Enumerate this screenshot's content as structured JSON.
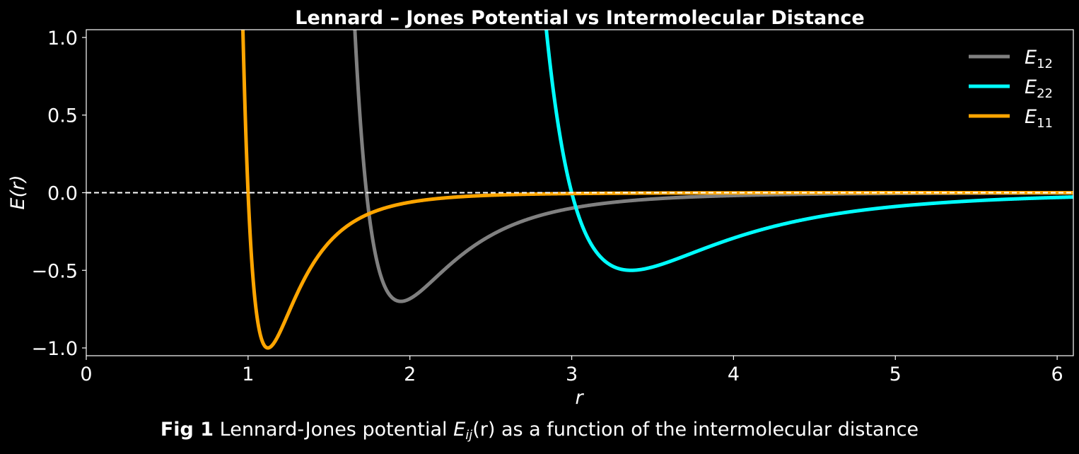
{
  "chart_data": {
    "type": "line",
    "title": "Lennard – Jones Potential vs Intermolecular Distance",
    "xlabel": "r",
    "ylabel": "E(r)",
    "xlim": [
      0,
      6.1
    ],
    "ylim": [
      -1.05,
      1.05
    ],
    "xticks": [
      0,
      1,
      2,
      3,
      4,
      5,
      6
    ],
    "yticks": [
      1.0,
      0.5,
      0.0,
      -0.5,
      -1.0
    ],
    "xtick_labels": [
      "0",
      "1",
      "2",
      "3",
      "4",
      "5",
      "6"
    ],
    "ytick_labels": [
      "1.0",
      "0.5",
      "0.0",
      "−0.5",
      "−1.0"
    ],
    "grid": false,
    "legend_position": "top-right",
    "reference_line": {
      "y": 0,
      "style": "dashed",
      "color": "#ffffff"
    },
    "series": [
      {
        "name": "E12",
        "label_main": "E",
        "label_sub": "12",
        "color": "#808080",
        "epsilon": 0.7,
        "sigma": 1.732,
        "r_min": 1.944
      },
      {
        "name": "E22",
        "label_main": "E",
        "label_sub": "22",
        "color": "#00ffff",
        "epsilon": 0.5,
        "sigma": 3.0,
        "r_min": 3.367
      },
      {
        "name": "E11",
        "label_main": "E",
        "label_sub": "11",
        "color": "#ffa500",
        "epsilon": 1.0,
        "sigma": 1.0,
        "r_min": 1.122
      }
    ]
  },
  "caption": {
    "prefix": "Fig 1",
    "before": " Lennard-Jones potential ",
    "symbol": "E",
    "symbol_sub": "ij",
    "arg": "(r)",
    "after": " as a function of the intermolecular distance"
  }
}
